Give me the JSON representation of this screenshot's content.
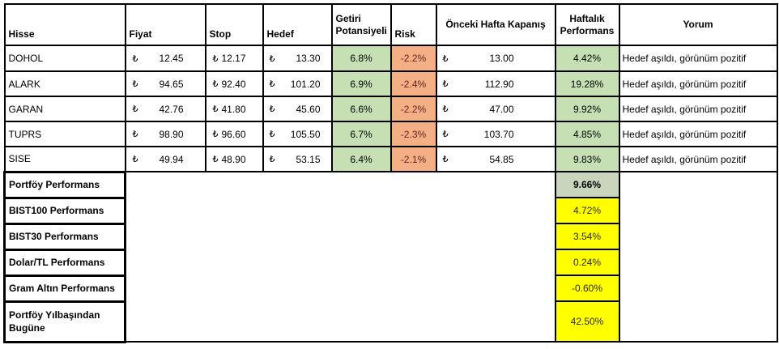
{
  "table": {
    "currency": "₺",
    "headers": {
      "hisse": "Hisse",
      "fiyat": "Fiyat",
      "stop": "Stop",
      "hedef": "Hedef",
      "getiri": "Getiri Potansiyeli",
      "risk": "Risk",
      "onceki": "Önceki Hafta Kapanış",
      "haftalik": "Haftalık Performans",
      "yorum": "Yorum"
    },
    "rows": [
      {
        "hisse": "DOHOL",
        "fiyat": "12.45",
        "stop": "12.17",
        "hedef": "13.30",
        "getiri": "6.8%",
        "risk": "-2.2%",
        "onceki": "13.00",
        "haftalik": "4.42%",
        "yorum": "Hedef aşıldı, görünüm pozitif"
      },
      {
        "hisse": "ALARK",
        "fiyat": "94.65",
        "stop": "92.40",
        "hedef": "101.20",
        "getiri": "6.9%",
        "risk": "-2.4%",
        "onceki": "112.90",
        "haftalik": "19.28%",
        "yorum": "Hedef aşıldı, görünüm pozitif"
      },
      {
        "hisse": "GARAN",
        "fiyat": "42.76",
        "stop": "41.80",
        "hedef": "45.60",
        "getiri": "6.6%",
        "risk": "-2.2%",
        "onceki": "47.00",
        "haftalik": "9.92%",
        "yorum": "Hedef aşıldı, görünüm pozitif"
      },
      {
        "hisse": "TUPRS",
        "fiyat": "98.90",
        "stop": "96.60",
        "hedef": "105.50",
        "getiri": "6.7%",
        "risk": "-2.3%",
        "onceki": "103.70",
        "haftalik": "4.85%",
        "yorum": "Hedef aşıldı, görünüm pozitif"
      },
      {
        "hisse": "SISE",
        "fiyat": "49.94",
        "stop": "48.90",
        "hedef": "53.15",
        "getiri": "6.4%",
        "risk": "-2.1%",
        "onceki": "54.85",
        "haftalik": "9.83%",
        "yorum": "Hedef aşıldı, görünüm pozitif"
      }
    ],
    "summary": [
      {
        "label": "Portföy Performans",
        "value": "9.66%"
      },
      {
        "label": "BIST100 Performans",
        "value": "4.72%"
      },
      {
        "label": "BIST30 Performans",
        "value": "3.54%"
      },
      {
        "label": "Dolar/TL Performans",
        "value": "0.24%"
      },
      {
        "label": "Gram Altın Performans",
        "value": "-0.60%"
      },
      {
        "label": "Portföy Yılbaşından Bugüne",
        "value": "42.50%"
      }
    ],
    "colors": {
      "green_fill": "#c6e0b4",
      "green_muted_fill": "#c9d6bd",
      "orange_fill": "#f4b084",
      "yellow_fill": "#ffff00",
      "risk_text": "#632423",
      "border": "#000000"
    }
  }
}
